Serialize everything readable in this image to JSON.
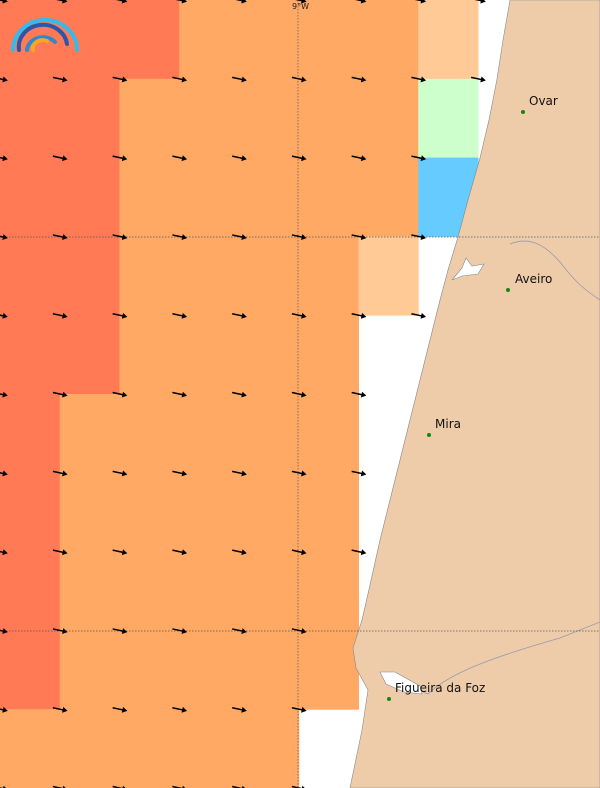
{
  "axis_labels": {
    "lon": "9°W"
  },
  "colors": {
    "red": "#FF7A55",
    "orange": "#FFA965",
    "light": "#FFCA95",
    "green": "#CCFFCC",
    "blue": "#66CCFF",
    "land": "#EECCAA"
  },
  "grid_cells": [
    [
      "red",
      "red",
      "red",
      "orange",
      "orange",
      "orange",
      "orange",
      "light"
    ],
    [
      "red",
      "red",
      "orange",
      "orange",
      "orange",
      "orange",
      "orange",
      "green"
    ],
    [
      "red",
      "red",
      "orange",
      "orange",
      "orange",
      "orange",
      "orange",
      "blue"
    ],
    [
      "red",
      "red",
      "orange",
      "orange",
      "orange",
      "orange",
      "light",
      ""
    ],
    [
      "red",
      "red",
      "orange",
      "orange",
      "orange",
      "orange",
      "",
      ""
    ],
    [
      "red",
      "orange",
      "orange",
      "orange",
      "orange",
      "orange",
      "",
      ""
    ],
    [
      "red",
      "orange",
      "orange",
      "orange",
      "orange",
      "orange",
      "",
      ""
    ],
    [
      "red",
      "orange",
      "orange",
      "orange",
      "orange",
      "orange",
      "",
      ""
    ],
    [
      "red",
      "orange",
      "orange",
      "orange",
      "orange",
      "orange",
      "",
      ""
    ],
    [
      "orange",
      "orange",
      "orange",
      "orange",
      "orange",
      "",
      "",
      ""
    ]
  ],
  "towns": [
    {
      "name": "Ovar"
    },
    {
      "name": "Aveiro"
    },
    {
      "name": "Mira"
    },
    {
      "name": "Figueira da Foz"
    }
  ]
}
